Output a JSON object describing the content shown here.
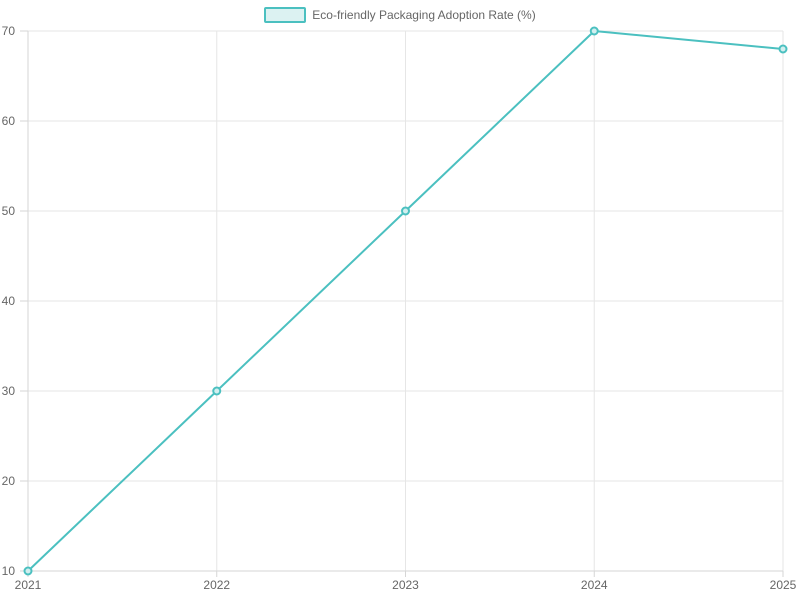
{
  "legend": {
    "position": "top"
  },
  "colors": {
    "series": "#4bc0c0",
    "series_fill_light": "#dcf2f2",
    "point_fill": "#d2efef",
    "grid": "#e6e6e6",
    "axis": "#d6d6d6",
    "tick_text": "#666666",
    "background": "#ffffff"
  },
  "chart_data": {
    "type": "line",
    "title": "",
    "x": [
      "2021",
      "2022",
      "2023",
      "2024",
      "2025"
    ],
    "series": [
      {
        "name": "Eco-friendly Packaging Adoption Rate (%)",
        "values": [
          10,
          30,
          50,
          70,
          68
        ]
      }
    ],
    "xlabel": "",
    "ylabel": "",
    "ylim": [
      10,
      70
    ],
    "yticks": [
      10,
      20,
      30,
      40,
      50,
      60,
      70
    ],
    "grid": true,
    "legend_position": "top"
  }
}
